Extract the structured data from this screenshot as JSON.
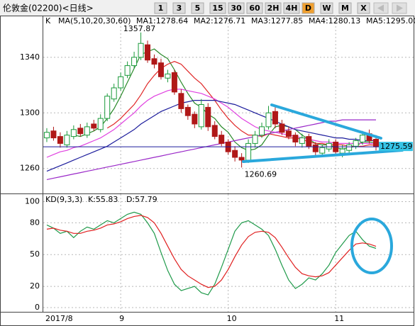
{
  "toolbar": {
    "title": "伦敦金(02200)<日线>",
    "buttons": [
      "1",
      "3",
      "5",
      "15",
      "30",
      "60",
      "2H",
      "4H",
      "D",
      "W",
      "M",
      "X"
    ],
    "active": "D"
  },
  "chart_data": [
    {
      "type": "candlestick",
      "panel_label": "K",
      "indicator": "MA(5,10,20,30,60)",
      "up_color": "#1a9a3a",
      "down_color": "#b01818",
      "xlim": [
        -0.63,
        54.7
      ],
      "ylim": [
        1242,
        1370
      ],
      "yticks": [
        1260,
        1300,
        1340
      ],
      "grid": true,
      "open": [
        1282,
        1287,
        1283,
        1277,
        1283,
        1289,
        1284,
        1292,
        1288,
        1296,
        1310,
        1318,
        1327,
        1334,
        1340,
        1349,
        1339,
        1336,
        1325,
        1329,
        1314,
        1304,
        1299,
        1290,
        1304,
        1291,
        1284,
        1279,
        1273,
        1268,
        1266,
        1278,
        1284,
        1290,
        1301,
        1292,
        1287,
        1284,
        1278,
        1283,
        1277,
        1271,
        1274,
        1279,
        1271,
        1273,
        1276,
        1279,
        1285,
        1281
      ],
      "high": [
        1289,
        1290,
        1286,
        1287,
        1291,
        1292,
        1293,
        1295,
        1299,
        1314,
        1321,
        1329,
        1337,
        1344,
        1357.87,
        1352,
        1342,
        1339,
        1331,
        1331,
        1317,
        1306,
        1301,
        1310,
        1307,
        1294,
        1287,
        1281,
        1276,
        1271,
        1281,
        1287,
        1293,
        1305,
        1304,
        1295,
        1290,
        1286,
        1285,
        1285,
        1279,
        1277,
        1281,
        1281,
        1277,
        1279,
        1282,
        1287,
        1288,
        1284
      ],
      "low": [
        1279,
        1280,
        1275,
        1275,
        1281,
        1283,
        1282,
        1287,
        1286,
        1294,
        1308,
        1316,
        1325,
        1332,
        1338,
        1336,
        1332,
        1324,
        1322,
        1313,
        1300,
        1295,
        1289,
        1288,
        1287,
        1281,
        1276,
        1270,
        1265,
        1260.69,
        1264,
        1275,
        1282,
        1288,
        1289,
        1284,
        1281,
        1276,
        1275,
        1274,
        1269,
        1269,
        1272,
        1269,
        1268,
        1271,
        1274,
        1277,
        1278,
        1273
      ],
      "close": [
        1286,
        1282,
        1278,
        1284,
        1288,
        1285,
        1290,
        1289,
        1296,
        1312,
        1318,
        1326,
        1334,
        1340,
        1350,
        1338,
        1335,
        1326,
        1328,
        1315,
        1303,
        1298,
        1292,
        1306,
        1290,
        1283,
        1278,
        1272,
        1268,
        1266,
        1278,
        1284,
        1290,
        1300,
        1292,
        1286,
        1283,
        1279,
        1282,
        1276,
        1272,
        1275,
        1278,
        1272,
        1274,
        1277,
        1280,
        1284,
        1280,
        1275.59
      ],
      "series": [
        {
          "name": "MA1:1278.64",
          "color": "#2a8a2a",
          "values": [
            null,
            null,
            null,
            null,
            1284,
            1283,
            1285,
            1287,
            1290,
            1296,
            1303,
            1312,
            1322,
            1332,
            1342,
            1344,
            1346,
            1342,
            1339,
            1331,
            1322,
            1314,
            1307,
            1304,
            1299,
            1296,
            1290,
            1286,
            1279,
            1275,
            1273,
            1274,
            1277,
            1284,
            1290,
            1291,
            1290,
            1288,
            1284,
            1281,
            1278,
            1277,
            1277,
            1275,
            1274,
            1275,
            1276,
            1279,
            1279,
            1278.64
          ]
        },
        {
          "name": "MA2:1276.71",
          "color": "#e02828",
          "values": [
            null,
            null,
            null,
            null,
            null,
            null,
            null,
            null,
            null,
            1289,
            1292,
            1296,
            1301,
            1306,
            1313,
            1321,
            1327,
            1332,
            1335,
            1337,
            1335,
            1330,
            1325,
            1321,
            1315,
            1309,
            1302,
            1296,
            1291,
            1287,
            1284,
            1284,
            1283,
            1285,
            1284,
            1283,
            1282,
            1282,
            1281,
            1279,
            1278,
            1278,
            1277,
            1277,
            1277,
            1276,
            1276,
            1276,
            1277,
            1276.71
          ]
        },
        {
          "name": "MA3:1277.85",
          "color": "#e040e0",
          "values": [
            1268,
            1270,
            1272,
            1273,
            1275,
            1276,
            1278,
            1280,
            1282,
            1285,
            1288,
            1292,
            1296,
            1300,
            1305,
            1309,
            1312,
            1314,
            1316,
            1317,
            1317,
            1316,
            1315,
            1314,
            1312,
            1310,
            1307,
            1304,
            1300,
            1296,
            1293,
            1290,
            1288,
            1287,
            1286,
            1285,
            1284,
            1283,
            1282,
            1281,
            1280,
            1279,
            1279,
            1278,
            1278,
            1278,
            1278,
            1278,
            1278,
            1277.85
          ]
        },
        {
          "name": "MA4:1280.13",
          "color": "#1c1c9c",
          "values": [
            1258,
            1260,
            1262,
            1264,
            1266,
            1268,
            1270,
            1272,
            1274,
            1276,
            1279,
            1282,
            1285,
            1288,
            1292,
            1295,
            1298,
            1301,
            1303,
            1305,
            1307,
            1308,
            1309,
            1309,
            1309,
            1309,
            1308,
            1307,
            1306,
            1304,
            1302,
            1300,
            1298,
            1296,
            1294,
            1292,
            1290,
            1288,
            1287,
            1286,
            1285,
            1284,
            1283,
            1282,
            1282,
            1281,
            1281,
            1280,
            1280,
            1280.13
          ]
        },
        {
          "name": "MA5:1295.00",
          "color": "#9a28c8",
          "values": [
            1252,
            1253,
            1254,
            1255,
            1256,
            1257,
            1258,
            1259,
            1260,
            1261,
            1262,
            1263,
            1264,
            1265,
            1266,
            1267,
            1268,
            1269,
            1270,
            1271,
            1272,
            1273,
            1274,
            1275,
            1276,
            1277,
            1278,
            1279,
            1280,
            1281,
            1282,
            1283,
            1284,
            1285,
            1286,
            1287,
            1288,
            1289,
            1290,
            1291,
            1292,
            1293,
            1294,
            1294,
            1295,
            1295,
            1295,
            1295,
            1295,
            1295
          ]
        }
      ]
    },
    {
      "type": "line",
      "indicator": "KD(9,3,3)",
      "xlim": [
        -0.63,
        54.7
      ],
      "ylim": [
        -4,
        107
      ],
      "yticks": [
        0,
        20,
        50,
        80,
        100
      ],
      "grid": true,
      "xticks": [
        {
          "value": 0,
          "label": "2017/8"
        },
        {
          "value": 11,
          "label": "9"
        },
        {
          "value": 27,
          "label": "10"
        },
        {
          "value": 43,
          "label": "11"
        }
      ],
      "series": [
        {
          "name": "K:55.83",
          "color": "#1f9a4a",
          "values": [
            78,
            75,
            70,
            72,
            66,
            72,
            76,
            74,
            78,
            82,
            80,
            84,
            88,
            90,
            88,
            80,
            70,
            52,
            35,
            22,
            16,
            18,
            20,
            14,
            12,
            22,
            38,
            55,
            72,
            80,
            82,
            78,
            74,
            68,
            55,
            40,
            26,
            18,
            22,
            28,
            26,
            32,
            40,
            52,
            60,
            68,
            72,
            64,
            58,
            55.83
          ]
        },
        {
          "name": "D:57.79",
          "color": "#e02020",
          "values": [
            74,
            75,
            73,
            72,
            70,
            70,
            72,
            73,
            75,
            78,
            79,
            81,
            84,
            86,
            87,
            85,
            80,
            70,
            58,
            46,
            36,
            30,
            26,
            22,
            19,
            20,
            26,
            36,
            48,
            59,
            67,
            71,
            72,
            71,
            66,
            57,
            47,
            38,
            32,
            30,
            29,
            30,
            33,
            40,
            47,
            54,
            60,
            61,
            60,
            57.79
          ]
        }
      ]
    }
  ]
}
